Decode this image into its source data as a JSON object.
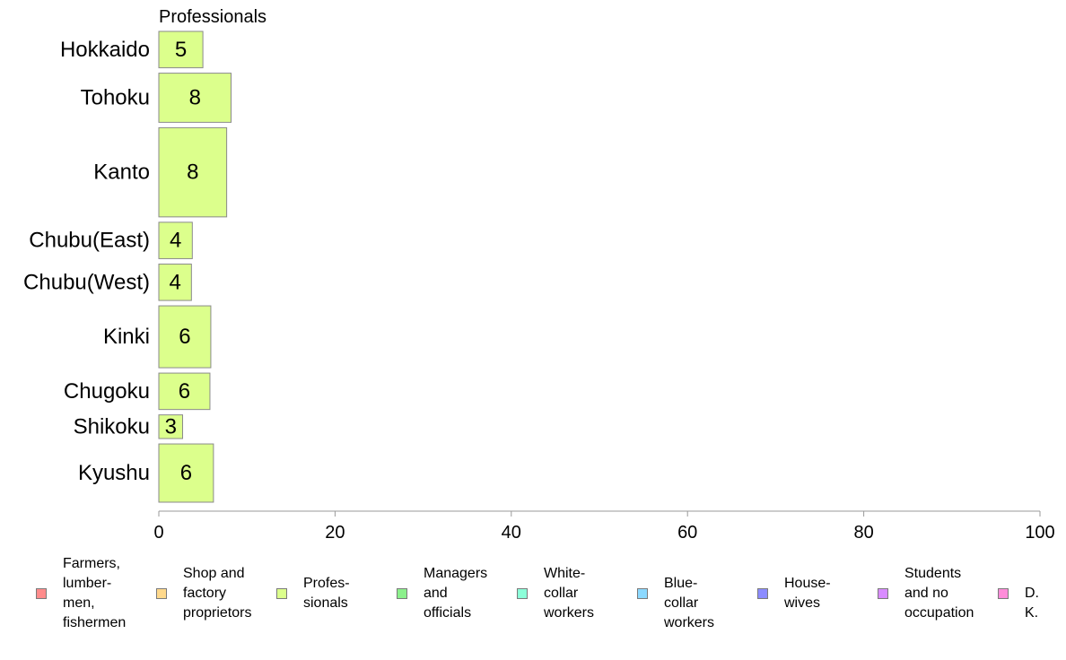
{
  "chart_data": {
    "type": "bar",
    "orientation": "horizontal",
    "title": "Professionals",
    "categories": [
      "Hokkaido",
      "Tohoku",
      "Kanto",
      "Chubu(East)",
      "Chubu(West)",
      "Kinki",
      "Chugoku",
      "Shikoku",
      "Kyushu"
    ],
    "values": [
      5,
      8,
      8,
      4,
      4,
      6,
      6,
      3,
      6
    ],
    "bar_fractions": [
      5.0,
      8.2,
      7.7,
      3.8,
      3.7,
      5.9,
      5.8,
      2.7,
      6.2
    ],
    "bar_weights": [
      1,
      1.35,
      2.45,
      1,
      1,
      1.7,
      1,
      0.65,
      1.6
    ],
    "xlim": [
      0,
      100
    ],
    "xticks": [
      0,
      20,
      40,
      60,
      80,
      100
    ],
    "xlabel": "",
    "ylabel": "",
    "grid": false,
    "bar_color": "#dcff8c",
    "bar_edge_color": "#8a8a8a",
    "axis_color": "#9a9a9a",
    "legend_placement": "bottom"
  },
  "legend": {
    "items": [
      {
        "label": "Farmers,\nlumber-\nmen,\nfishermen",
        "color": "#ff8c8c"
      },
      {
        "label": "Shop and\nfactory\nproprietors",
        "color": "#ffd98c"
      },
      {
        "label": "Profes-\nsionals",
        "color": "#dcff8c"
      },
      {
        "label": "Managers\nand\nofficials",
        "color": "#8cf08c"
      },
      {
        "label": "White-\ncollar\nworkers",
        "color": "#8cffd9"
      },
      {
        "label": "Blue-collar\nworkers",
        "color": "#8cd9ff"
      },
      {
        "label": "House-\nwives",
        "color": "#8c8cff"
      },
      {
        "label": "Students\nand no\noccupation",
        "color": "#d98cff"
      },
      {
        "label": "D. K.",
        "color": "#ff8cd9"
      }
    ]
  }
}
